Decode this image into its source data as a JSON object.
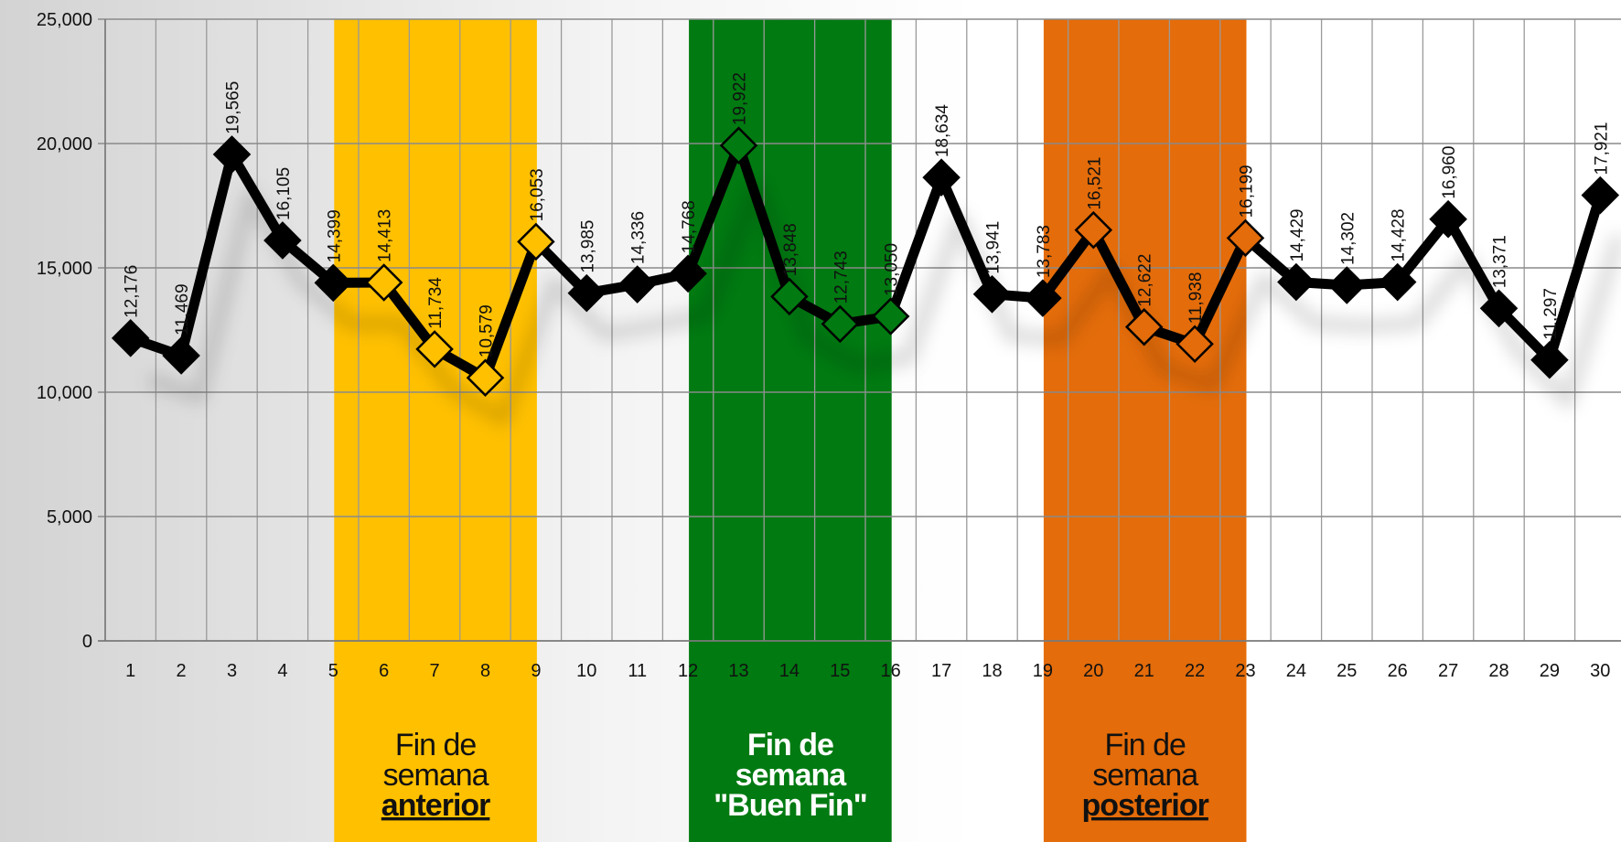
{
  "chart_data": {
    "type": "line",
    "title": "",
    "xlabel": "",
    "ylabel": "",
    "x": [
      1,
      2,
      3,
      4,
      5,
      6,
      7,
      8,
      9,
      10,
      11,
      12,
      13,
      14,
      15,
      16,
      17,
      18,
      19,
      20,
      21,
      22,
      23,
      24,
      25,
      26,
      27,
      28,
      29,
      30
    ],
    "values": [
      12176,
      11469,
      19565,
      16105,
      14399,
      14413,
      11734,
      10579,
      16053,
      13985,
      14336,
      14768,
      19922,
      13848,
      12743,
      13050,
      18634,
      13941,
      13783,
      16521,
      12622,
      11938,
      16199,
      14429,
      14302,
      14428,
      16960,
      13371,
      11297,
      17921
    ],
    "value_labels": [
      "12,176",
      "11,469",
      "19,565",
      "16,105",
      "14,399",
      "14,413",
      "11,734",
      "10,579",
      "16,053",
      "13,985",
      "14,336",
      "14,768",
      "19,922",
      "13,848",
      "12,743",
      "13,050",
      "18,634",
      "13,941",
      "13,783",
      "16,521",
      "12,622",
      "11,938",
      "16,199",
      "14,429",
      "14,302",
      "14,428",
      "16,960",
      "13,371",
      "11,297",
      "17,921"
    ],
    "ylim": [
      0,
      25000
    ],
    "y_ticks": [
      0,
      5000,
      10000,
      15000,
      20000,
      25000
    ],
    "y_tick_labels": [
      "0",
      "5,000",
      "10,000",
      "15,000",
      "20,000",
      "25,000"
    ],
    "x_tick_labels": [
      "1",
      "2",
      "3",
      "4",
      "5",
      "6",
      "7",
      "8",
      "9",
      "10",
      "11",
      "12",
      "13",
      "14",
      "15",
      "16",
      "17",
      "18",
      "19",
      "20",
      "21",
      "22",
      "23",
      "24",
      "25",
      "26",
      "27",
      "28",
      "29",
      "30"
    ],
    "grid": true,
    "line_color": "#000000",
    "bands": [
      {
        "name": "anterior",
        "start_day": 6,
        "end_day": 9,
        "color": "#FFC000",
        "caption_color": "#111111",
        "caption_lines": [
          {
            "text": "Fin de",
            "bold": false,
            "underline": false
          },
          {
            "text": "semana",
            "bold": false,
            "underline": false
          },
          {
            "text": "anterior",
            "bold": true,
            "underline": true
          }
        ]
      },
      {
        "name": "buen-fin",
        "start_day": 13,
        "end_day": 16,
        "color": "#007A11",
        "caption_color": "#ffffff",
        "caption_lines": [
          {
            "text": "Fin de",
            "bold": true,
            "underline": false
          },
          {
            "text": "semana",
            "bold": true,
            "underline": false
          },
          {
            "text": "\"Buen Fin\"",
            "bold": true,
            "underline": false
          }
        ]
      },
      {
        "name": "posterior",
        "start_day": 20,
        "end_day": 23,
        "color": "#E46C0A",
        "caption_color": "#111111",
        "caption_lines": [
          {
            "text": "Fin de",
            "bold": false,
            "underline": false
          },
          {
            "text": "semana",
            "bold": false,
            "underline": false
          },
          {
            "text": "posterior",
            "bold": true,
            "underline": true
          }
        ]
      }
    ]
  }
}
